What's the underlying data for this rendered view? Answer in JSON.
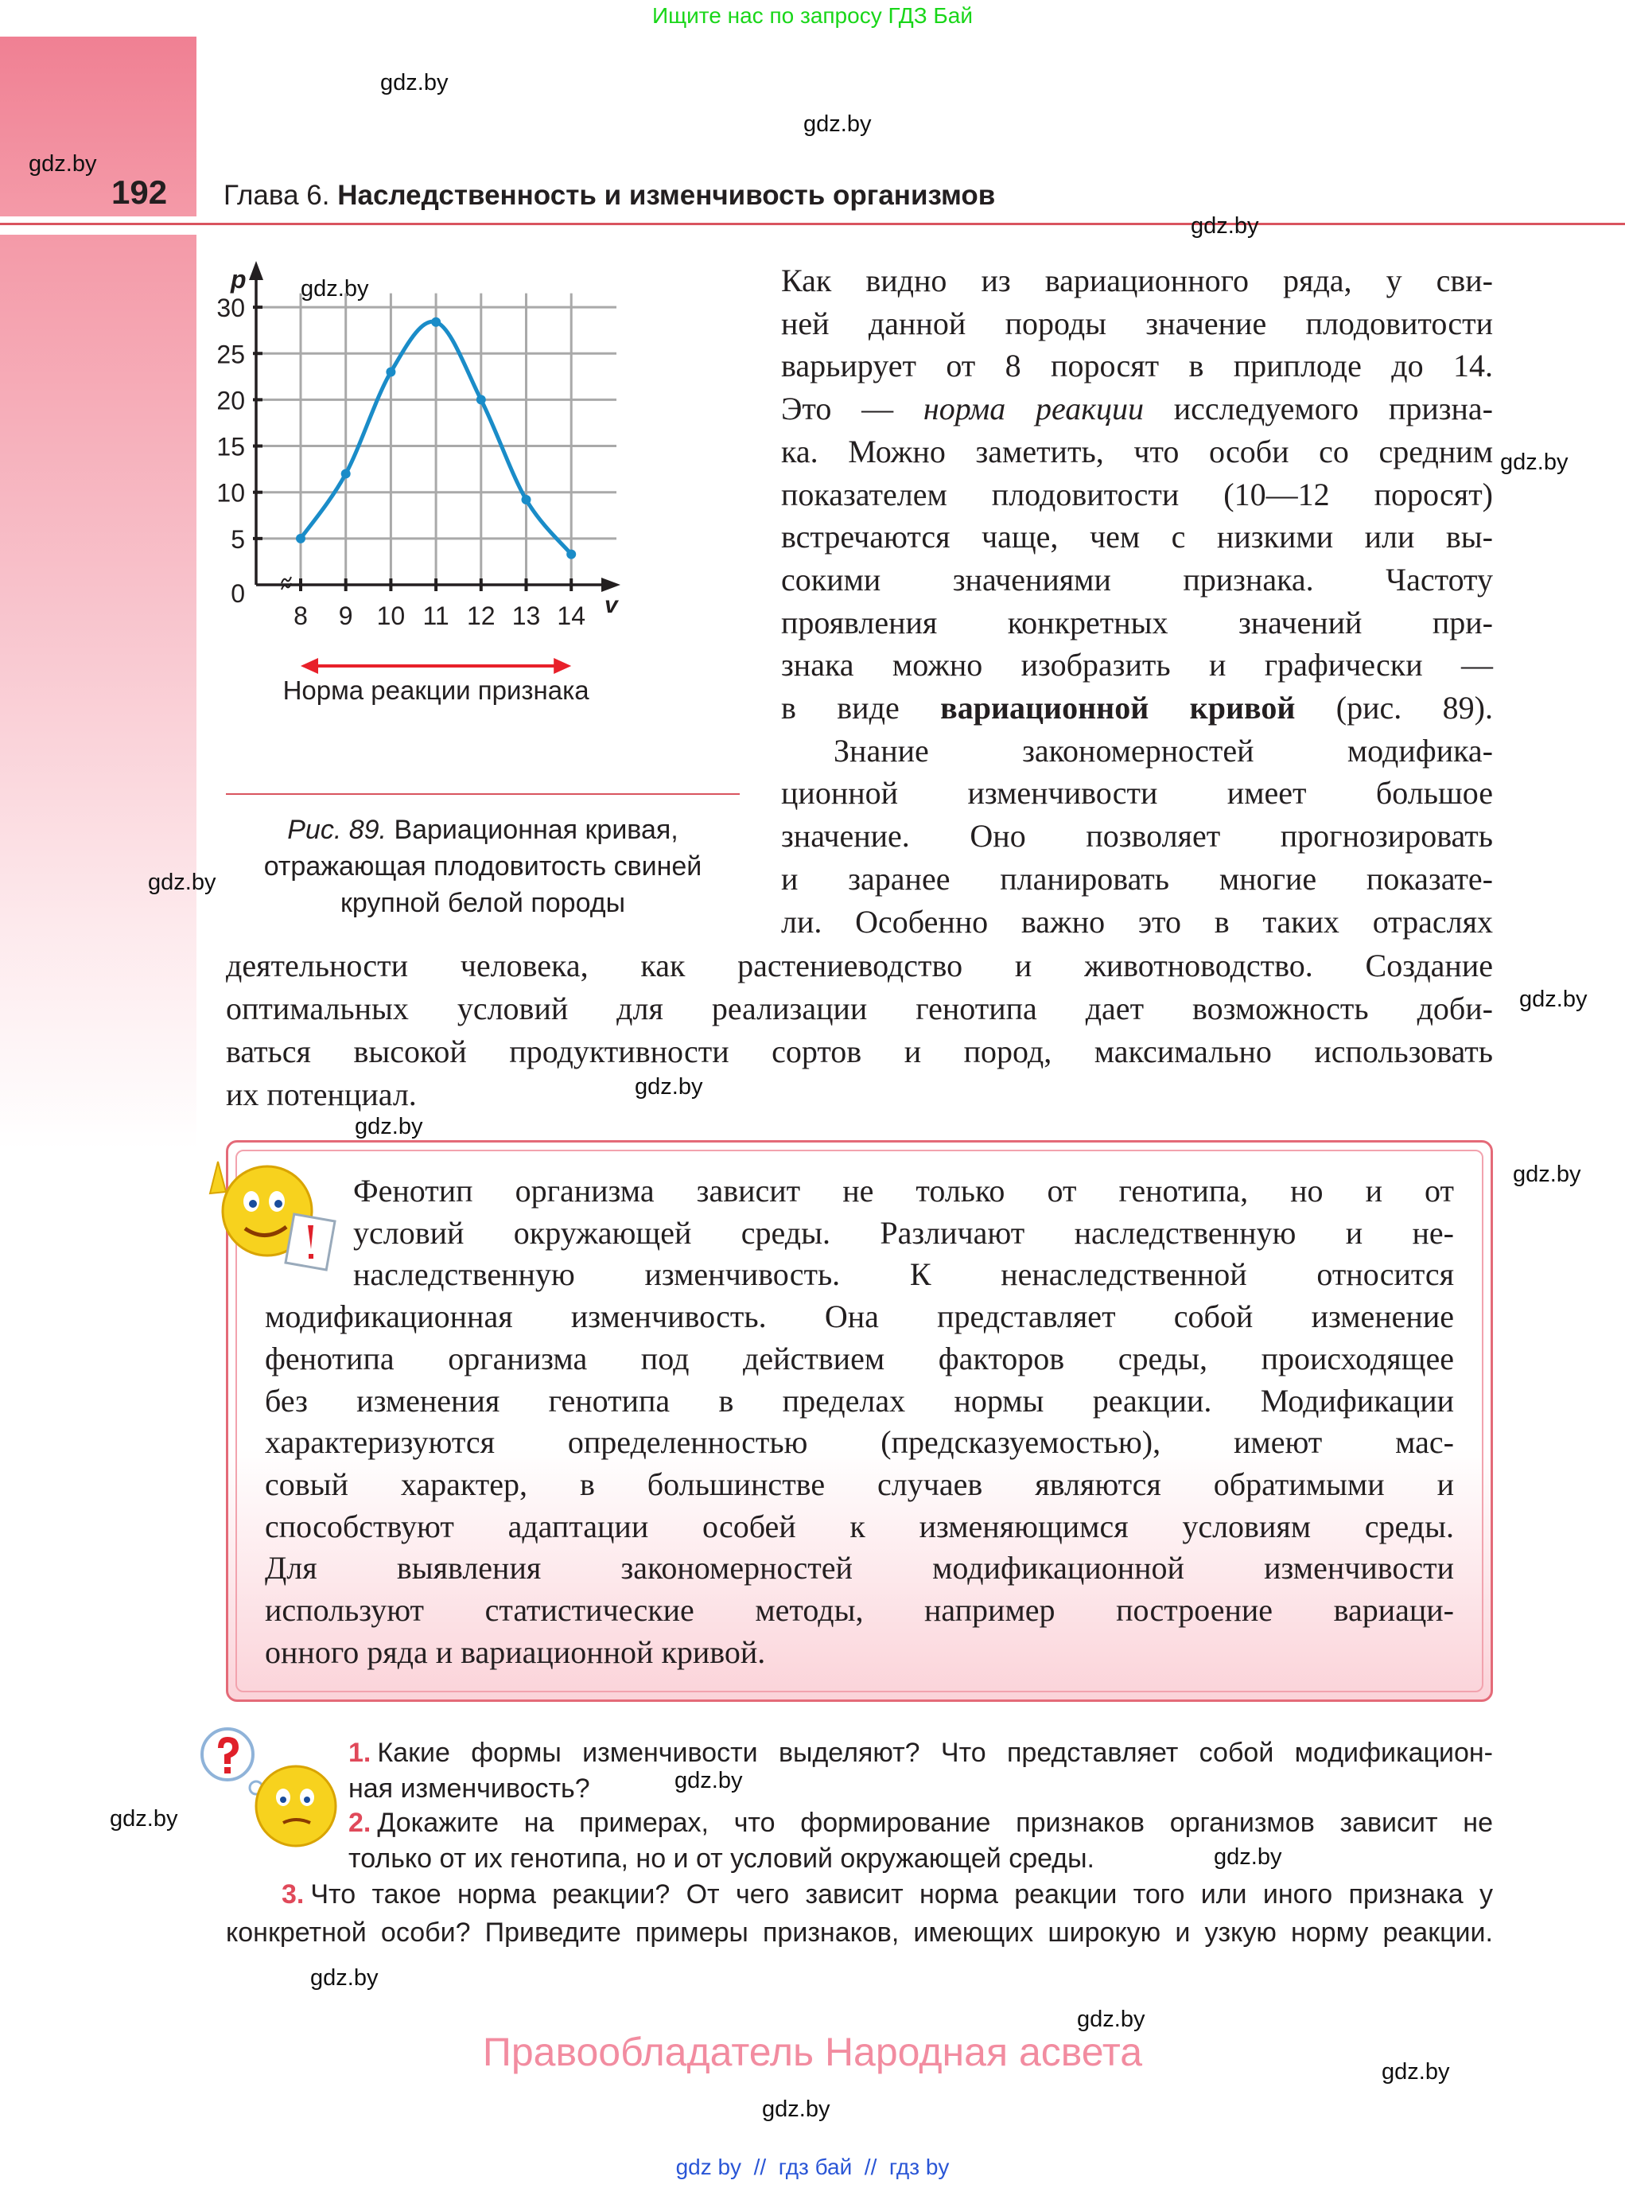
{
  "banner": "Ищите нас по запросу ГДЗ Бай",
  "page_number": "192",
  "chapter": {
    "prefix": "Глава 6.",
    "title": "Наследственность и изменчивость организмов"
  },
  "watermark": "gdz.by",
  "chart_data": {
    "type": "line",
    "x": [
      8,
      9,
      10,
      11,
      12,
      13,
      14
    ],
    "values": [
      5,
      12,
      23,
      28.4,
      20,
      9.2,
      3.3
    ],
    "x_ticks": [
      "8",
      "9",
      "10",
      "11",
      "12",
      "13",
      "14"
    ],
    "y_ticks": [
      "0",
      "5",
      "10",
      "15",
      "20",
      "25",
      "30"
    ],
    "xlabel": "v",
    "ylabel": "p",
    "xlim": [
      7,
      15
    ],
    "ylim": [
      0,
      32
    ],
    "grid": true,
    "line_color": "#1a8cc8",
    "range_arrow_label": "Норма реакции признака",
    "range_arrow_color": "#e8202a"
  },
  "figure_caption": {
    "label": "Рис. 89.",
    "lines": [
      "Вариационная кривая,",
      "отражающая плодовитость свиней",
      "крупной белой породы"
    ]
  },
  "paragraph_right": [
    [
      [
        "Как видно из вариационного ряда, у сви-",
        "n"
      ]
    ],
    [
      [
        "ней данной породы значение плодовитости",
        "n"
      ]
    ],
    [
      [
        "варьирует от 8 поросят в приплоде до 14.",
        "n"
      ]
    ],
    [
      [
        "Это — ",
        "n"
      ],
      [
        "норма реакции",
        "i"
      ],
      [
        " исследуемого призна-",
        "n"
      ]
    ],
    [
      [
        "ка. Можно заметить, что особи со средним",
        "n"
      ]
    ],
    [
      [
        "показателем плодовитости (10—12 поросят)",
        "n"
      ]
    ],
    [
      [
        "встречаются чаще, чем с низкими или вы-",
        "n"
      ]
    ],
    [
      [
        "сокими значениями признака. Частоту",
        "n"
      ]
    ],
    [
      [
        "проявления конкретных значений при-",
        "n"
      ]
    ],
    [
      [
        "знака можно изобразить и графически —",
        "n"
      ]
    ],
    [
      [
        "в виде ",
        "n"
      ],
      [
        "вариационной кривой",
        "b"
      ],
      [
        " (рис. 89).",
        "n"
      ]
    ],
    [
      [
        "Знание закономерностей модифика-",
        "n"
      ]
    ],
    [
      [
        "ционной изменчивости имеет большое",
        "n"
      ]
    ],
    [
      [
        "значение. Оно позволяет прогнозировать",
        "n"
      ]
    ],
    [
      [
        "и заранее планировать многие показате-",
        "n"
      ]
    ],
    [
      [
        "ли. Особенно важно это в таких отраслях",
        "n"
      ]
    ]
  ],
  "paragraph_full": [
    "деятельности человека, как растениеводство и животноводство. Создание",
    "оптимальных условий для реализации генотипа дает возможность доби-",
    "ваться высокой продуктивности сортов и пород, максимально использовать",
    "их потенциал."
  ],
  "highlight_box": [
    "Фенотип организма зависит не только от генотипа, но и от",
    "условий окружающей среды. Различают наследственную и не-",
    "наследственную изменчивость. К ненаследственной относится",
    "модификационная изменчивость. Она представляет собой изменение",
    "фенотипа организма под действием факторов среды, происходящее",
    "без изменения генотипа в пределах нормы реакции. Модификации",
    "характеризуются определенностью (предсказуемостью), имеют мас-",
    "совый характер, в большинстве случаев являются обратимыми и",
    "способствуют адаптации особей к изменяющимся условиям среды.",
    "Для выявления закономерностей модификационной изменчивости",
    "используют статистические методы, например построение вариаци-",
    "онного ряда и вариационной кривой."
  ],
  "questions": [
    {
      "num": "1.",
      "lines": [
        "Какие формы изменчивости выделяют? Что представляет собой модификацион-",
        "ная изменчивость?"
      ]
    },
    {
      "num": "2.",
      "lines": [
        "Докажите на примерах, что формирование признаков организмов зависит не",
        "только от их генотипа, но и от условий окружающей среды."
      ]
    },
    {
      "num": "3.",
      "lines": [
        "Что такое норма реакции? От чего зависит норма реакции того или иного признака у",
        "конкретной особи? Приведите примеры признаков, имеющих широкую и узкую норму реакции."
      ]
    }
  ],
  "copyright": "Правообладатель Народная асвета",
  "footer_links": "gdz by  //  гдз бай  //  гдз by"
}
